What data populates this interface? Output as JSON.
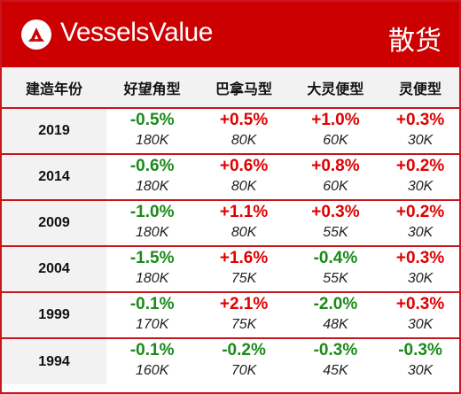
{
  "header": {
    "brand": "VesselsValue",
    "category": "散货",
    "logo_icon": "vesselsvalue-logo-icon",
    "color": "#cc0000"
  },
  "columns": {
    "year": "建造年份",
    "c1": "好望角型",
    "c2": "巴拿马型",
    "c3": "大灵便型",
    "c4": "灵便型"
  },
  "rows": [
    {
      "year": "2019",
      "changes": [
        "-0.5%",
        "+0.5%",
        "+1.0%",
        "+0.3%"
      ],
      "sizes": [
        "180K",
        "80K",
        "60K",
        "30K"
      ]
    },
    {
      "year": "2014",
      "changes": [
        "-0.6%",
        "+0.6%",
        "+0.8%",
        "+0.2%"
      ],
      "sizes": [
        "180K",
        "80K",
        "60K",
        "30K"
      ]
    },
    {
      "year": "2009",
      "changes": [
        "-1.0%",
        "+1.1%",
        "+0.3%",
        "+0.2%"
      ],
      "sizes": [
        "180K",
        "80K",
        "55K",
        "30K"
      ]
    },
    {
      "year": "2004",
      "changes": [
        "-1.5%",
        "+1.6%",
        "-0.4%",
        "+0.3%"
      ],
      "sizes": [
        "180K",
        "75K",
        "55K",
        "30K"
      ]
    },
    {
      "year": "1999",
      "changes": [
        "-0.1%",
        "+2.1%",
        "-2.0%",
        "+0.3%"
      ],
      "sizes": [
        "170K",
        "75K",
        "48K",
        "30K"
      ]
    },
    {
      "year": "1994",
      "changes": [
        "-0.1%",
        "-0.2%",
        "-0.3%",
        "-0.3%"
      ],
      "sizes": [
        "160K",
        "70K",
        "45K",
        "30K"
      ]
    }
  ],
  "colors": {
    "positive": "#e00000",
    "negative": "#1a8a1a",
    "accent": "#cc0000"
  }
}
